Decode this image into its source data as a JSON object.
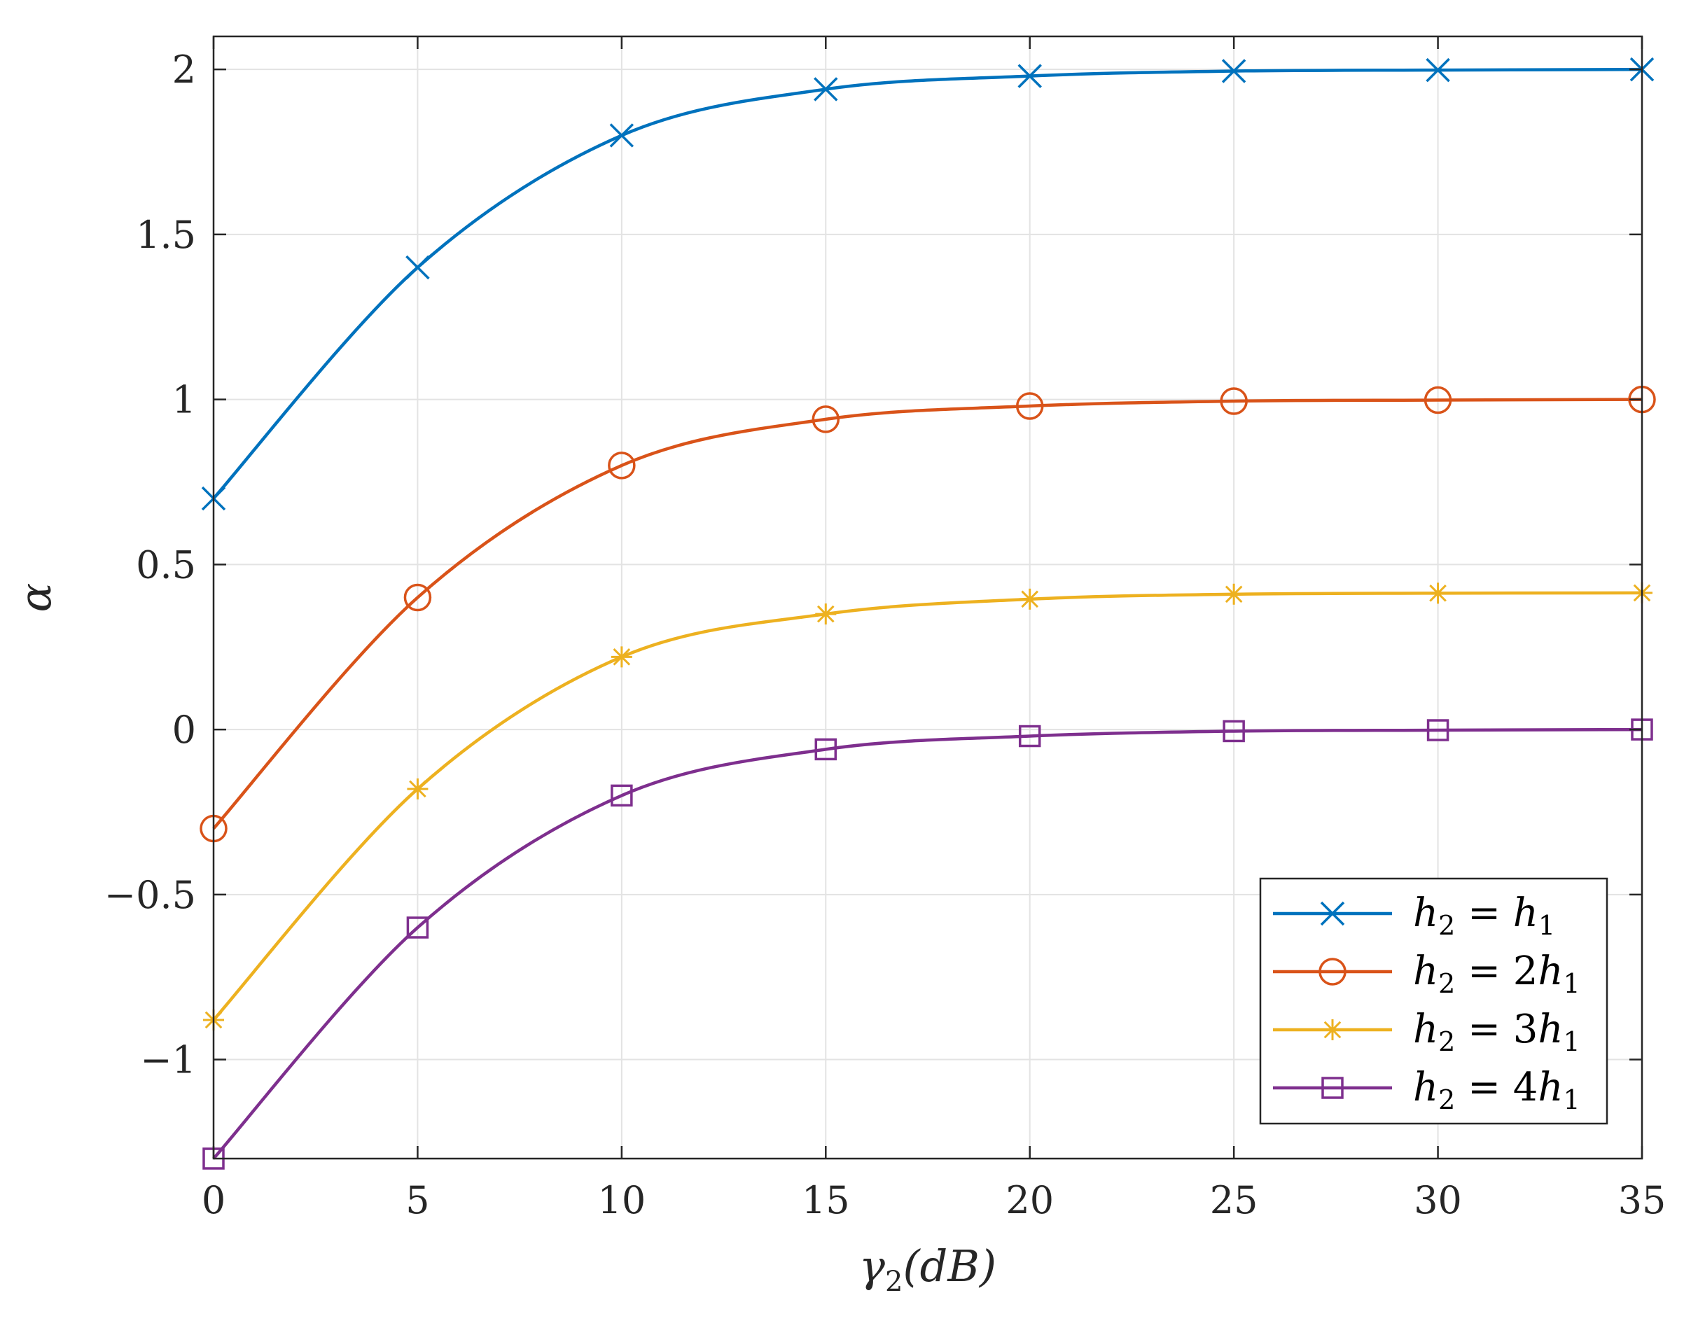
{
  "chart_data": {
    "type": "line",
    "title": "",
    "xlabel": "γ2(dB)",
    "xlabel_main": "γ",
    "xlabel_sub": "2",
    "xlabel_rest": "(dB)",
    "ylabel": "α",
    "xlim": [
      0,
      35
    ],
    "ylim": [
      -1.3,
      2.1
    ],
    "xticks": [
      0,
      5,
      10,
      15,
      20,
      25,
      30,
      35
    ],
    "xtick_labels": [
      "0",
      "5",
      "10",
      "15",
      "20",
      "25",
      "30",
      "35"
    ],
    "yticks": [
      -1,
      -0.5,
      0,
      0.5,
      1,
      1.5,
      2
    ],
    "ytick_labels": [
      "−1",
      "−0.5",
      "0",
      "0.5",
      "1",
      "1.5",
      "2"
    ],
    "grid": true,
    "legend_position": "bottom-right",
    "x": [
      0,
      5,
      10,
      15,
      20,
      25,
      30,
      35
    ],
    "series": [
      {
        "name": "h2 = h1",
        "legend_lhs": "h",
        "legend_lhs_sub": "2",
        "legend_eq": " = ",
        "legend_coef": "",
        "legend_rhs": "h",
        "legend_rhs_sub": "1",
        "color": "#0072BD",
        "marker": "x",
        "values": [
          0.7,
          1.4,
          1.8,
          1.94,
          1.98,
          1.995,
          1.998,
          2.0
        ]
      },
      {
        "name": "h2 = 2h1",
        "legend_lhs": "h",
        "legend_lhs_sub": "2",
        "legend_eq": " = ",
        "legend_coef": "2",
        "legend_rhs": "h",
        "legend_rhs_sub": "1",
        "color": "#D95319",
        "marker": "o",
        "values": [
          -0.3,
          0.4,
          0.8,
          0.94,
          0.98,
          0.995,
          0.998,
          1.0
        ]
      },
      {
        "name": "h2 = 3h1",
        "legend_lhs": "h",
        "legend_lhs_sub": "2",
        "legend_eq": " = ",
        "legend_coef": "3",
        "legend_rhs": "h",
        "legend_rhs_sub": "1",
        "color": "#EDB120",
        "marker": "*",
        "values": [
          -0.88,
          -0.18,
          0.22,
          0.35,
          0.395,
          0.41,
          0.413,
          0.414
        ]
      },
      {
        "name": "h2 = 4h1",
        "legend_lhs": "h",
        "legend_lhs_sub": "2",
        "legend_eq": " = ",
        "legend_coef": "4",
        "legend_rhs": "h",
        "legend_rhs_sub": "1",
        "color": "#7E2F8E",
        "marker": "square",
        "values": [
          -1.3,
          -0.6,
          -0.2,
          -0.06,
          -0.02,
          -0.005,
          -0.002,
          0.0
        ]
      }
    ]
  }
}
